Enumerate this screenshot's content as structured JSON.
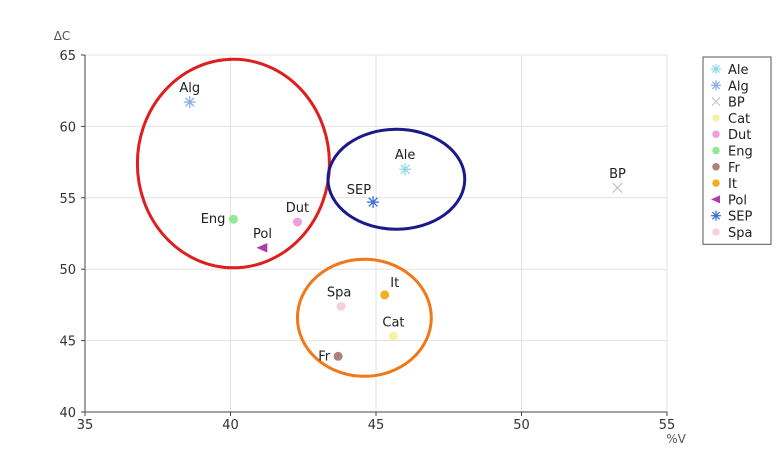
{
  "chart_data": {
    "type": "scatter",
    "title": "",
    "xlabel": "%V",
    "ylabel": "ΔC",
    "xlim": [
      35,
      55
    ],
    "ylim": [
      40,
      65
    ],
    "xticks": [
      35,
      40,
      45,
      50,
      55
    ],
    "yticks": [
      40,
      45,
      50,
      55,
      60,
      65
    ],
    "grid": true,
    "legend_position": "right",
    "series": [
      {
        "name": "Ale",
        "color": "#8fd8e8",
        "marker": "asterisk",
        "points": [
          {
            "x": 46.0,
            "y": 57.0,
            "label": "Ale"
          }
        ]
      },
      {
        "name": "Alg",
        "color": "#8aaee8",
        "marker": "asterisk",
        "points": [
          {
            "x": 38.6,
            "y": 61.7,
            "label": "Alg"
          }
        ]
      },
      {
        "name": "BP",
        "color": "#c8c8c8",
        "marker": "x",
        "points": [
          {
            "x": 53.3,
            "y": 55.7,
            "label": "BP"
          }
        ]
      },
      {
        "name": "Cat",
        "color": "#f6f0a8",
        "marker": "circle",
        "points": [
          {
            "x": 45.6,
            "y": 45.3,
            "label": "Cat"
          }
        ]
      },
      {
        "name": "Dut",
        "color": "#f0a0d8",
        "marker": "circle",
        "points": [
          {
            "x": 42.3,
            "y": 53.3,
            "label": "Dut"
          }
        ]
      },
      {
        "name": "Eng",
        "color": "#90e890",
        "marker": "circle",
        "points": [
          {
            "x": 40.1,
            "y": 53.5,
            "label": "Eng"
          }
        ]
      },
      {
        "name": "Fr",
        "color": "#b08078",
        "marker": "circle",
        "points": [
          {
            "x": 43.7,
            "y": 43.9,
            "label": "Fr"
          }
        ]
      },
      {
        "name": "It",
        "color": "#f0b020",
        "marker": "circle",
        "points": [
          {
            "x": 45.3,
            "y": 48.2,
            "label": "It"
          }
        ]
      },
      {
        "name": "Pol",
        "color": "#b03aa8",
        "marker": "triangle-left",
        "points": [
          {
            "x": 41.1,
            "y": 51.5,
            "label": "Pol"
          }
        ]
      },
      {
        "name": "SEP",
        "color": "#3a70d8",
        "marker": "asterisk",
        "points": [
          {
            "x": 44.9,
            "y": 54.7,
            "label": "SEP"
          }
        ]
      },
      {
        "name": "Spa",
        "color": "#f8d0dc",
        "marker": "circle",
        "points": [
          {
            "x": 43.8,
            "y": 47.4,
            "label": "Spa"
          }
        ]
      }
    ],
    "annotations": [
      {
        "type": "ellipse",
        "color": "#dd1f1f",
        "cx": 40.1,
        "cy": 57.4,
        "rx": 3.3,
        "ry": 7.3
      },
      {
        "type": "ellipse",
        "color": "#1a1a8a",
        "cx": 45.7,
        "cy": 56.3,
        "rx": 2.35,
        "ry": 3.5
      },
      {
        "type": "ellipse",
        "color": "#f07818",
        "cx": 44.6,
        "cy": 46.6,
        "rx": 2.3,
        "ry": 4.1
      }
    ]
  }
}
